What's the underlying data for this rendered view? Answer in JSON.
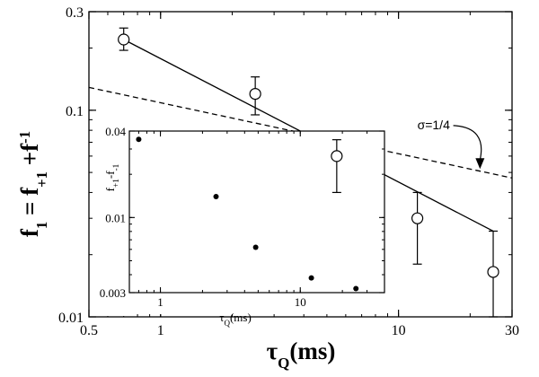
{
  "chart_data": [
    {
      "type": "scatter",
      "name": "main",
      "xscale": "log",
      "yscale": "log",
      "xlim": [
        0.5,
        30
      ],
      "ylim": [
        0.01,
        0.3
      ],
      "x_ticks": [
        0.5,
        1,
        10,
        30
      ],
      "x_tick_labels": [
        "0.5",
        "1",
        "10",
        "30"
      ],
      "y_ticks": [
        0.01,
        0.1,
        0.3
      ],
      "y_tick_labels": [
        "0.01",
        "0.1",
        "0.3"
      ],
      "xlabel": {
        "base": "τ",
        "sub": "Q",
        "rest": "(ms)"
      },
      "ylabel": {
        "parts": [
          [
            "f",
            ""
          ],
          [
            "1",
            "sub"
          ],
          [
            " = f",
            ""
          ],
          [
            "+1",
            "sub"
          ],
          [
            " +f",
            ""
          ],
          [
            "-1",
            "sup"
          ]
        ]
      },
      "series": [
        {
          "name": "data",
          "marker": "open-circle",
          "x": [
            0.7,
            2.5,
            5.5,
            12,
            25
          ],
          "y": [
            0.22,
            0.12,
            0.06,
            0.03,
            0.0165
          ],
          "err_low": [
            0.195,
            0.095,
            0.04,
            0.018,
            0.01
          ],
          "err_high": [
            0.25,
            0.145,
            0.072,
            0.04,
            0.026
          ]
        },
        {
          "name": "fit",
          "style": "solid",
          "x": [
            0.7,
            25
          ],
          "y": [
            0.22,
            0.026
          ]
        },
        {
          "name": "sigma-1/4",
          "style": "dashed",
          "x": [
            0.5,
            30
          ],
          "y": [
            0.129,
            0.047
          ]
        }
      ],
      "annotation": {
        "text": "σ=1/4",
        "x": 12,
        "y": 0.081,
        "arrow_to": [
          22,
          0.052
        ]
      }
    },
    {
      "type": "scatter",
      "name": "inset",
      "xscale": "log",
      "yscale": "log",
      "xlim": [
        0.6,
        40
      ],
      "ylim": [
        0.003,
        0.04
      ],
      "x_ticks": [
        1,
        10
      ],
      "x_tick_labels": [
        "1",
        "10"
      ],
      "y_ticks": [
        0.003,
        0.01,
        0.04
      ],
      "y_tick_labels": [
        "0.003",
        "0.01",
        "0.04"
      ],
      "xlabel": {
        "base": "τ",
        "sub": "Q",
        "rest": "(ms)"
      },
      "ylabel": {
        "parts": [
          [
            "f",
            ""
          ],
          [
            "+1",
            "sub"
          ],
          [
            "-f",
            ""
          ],
          [
            "-1",
            "sub"
          ]
        ]
      },
      "series": [
        {
          "name": "difference",
          "marker": "filled-dot",
          "x": [
            0.7,
            2.5,
            4.8,
            12,
            25
          ],
          "y": [
            0.035,
            0.014,
            0.0062,
            0.0038,
            0.0032
          ]
        }
      ]
    }
  ]
}
